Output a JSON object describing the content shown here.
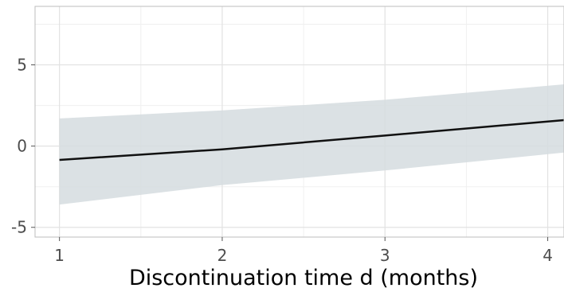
{
  "chart_data": {
    "type": "line",
    "title": "",
    "xlabel": "Discontinuation time d (months)",
    "ylabel": "",
    "xlim": [
      0.85,
      4.1
    ],
    "ylim": [
      -5.6,
      8.6
    ],
    "x_ticks": [
      1,
      2,
      3,
      4
    ],
    "x_tick_labels": [
      "1",
      "2",
      "3",
      "4"
    ],
    "y_ticks": [
      -5,
      0,
      5
    ],
    "y_tick_labels": [
      "-5",
      "0",
      "5"
    ],
    "grid": true,
    "legend": "none",
    "series": [
      {
        "x": [
          1,
          2,
          3,
          4.1
        ],
        "y": [
          -0.85,
          -0.2,
          0.65,
          1.6
        ],
        "lower": [
          -3.6,
          -2.4,
          -1.5,
          -0.4
        ],
        "upper": [
          1.7,
          2.2,
          2.85,
          3.8
        ],
        "color": "#111111",
        "band_color": "#d5dcdf"
      }
    ]
  }
}
